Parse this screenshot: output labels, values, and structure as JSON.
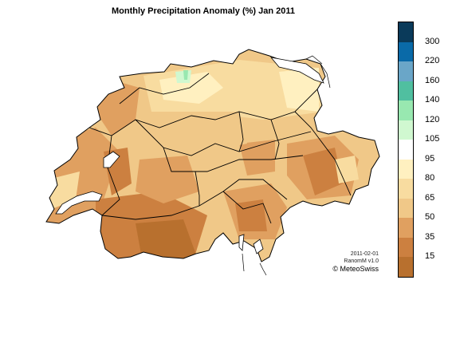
{
  "title": "Monthly Precipitation Anomaly (%) Jan 2011",
  "credits": {
    "date": "2011-02-01",
    "version": "RanomM v1.0",
    "brand": "© MeteoSwiss"
  },
  "legend": {
    "labels": [
      "300",
      "220",
      "160",
      "140",
      "120",
      "105",
      "95",
      "80",
      "65",
      "50",
      "35",
      "15"
    ],
    "colors": [
      "#0a3a5a",
      "#0a6aa8",
      "#6aa6c8",
      "#50bfa0",
      "#98e8b0",
      "#d0f8d0",
      "#ffffff",
      "#fff0c0",
      "#f8dca0",
      "#f0c888",
      "#e0a060",
      "#cc8040",
      "#b8702e"
    ]
  },
  "palette": {
    "background": "#ffffff",
    "border": "#000000",
    "lake": "#ffffff"
  }
}
